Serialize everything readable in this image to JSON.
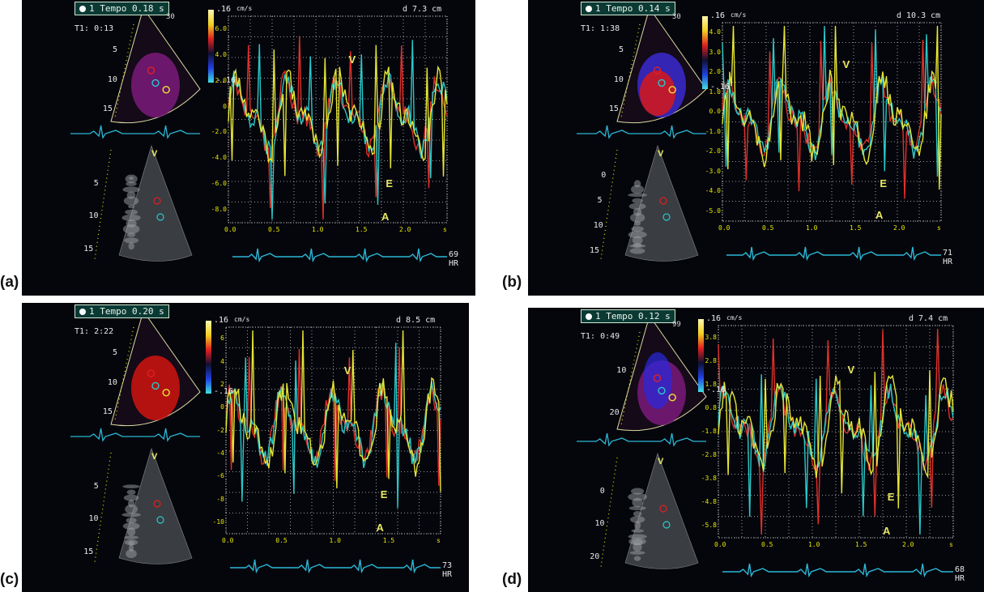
{
  "panels": [
    {
      "id": "a",
      "label": "(a)",
      "info_text": "1 Tempo 0.18 s",
      "time_text": "T1: 0:13",
      "distance": "d 7.3 cm",
      "unit": "cm/s",
      "hr_value": "69",
      "hr_unit": "HR",
      "colorbar_top": ".16",
      "colorbar_bottom": "-.16",
      "y_ticks": [
        "6.0",
        "4.0",
        "2.0",
        "0",
        "-2.0",
        "-4.0",
        "-6.0",
        "-8.0"
      ],
      "x_ticks": [
        "0.0",
        "0.5",
        "1.0",
        "1.5",
        "2.0",
        "s"
      ],
      "sector_depths": [
        "5",
        "10",
        "15"
      ],
      "bmode_depths": [
        "5",
        "10",
        "15"
      ],
      "wave_labels": [
        {
          "text": "V"
        },
        {
          "text": "E"
        },
        {
          "text": "A"
        }
      ],
      "probe_label": "V",
      "small_text": "30"
    },
    {
      "id": "b",
      "label": "(b)",
      "info_text": "1 Tempo 0.14 s",
      "time_text": "T1: 1:38",
      "distance": "d 10.3 cm",
      "unit": "cm/s",
      "hr_value": "71",
      "hr_unit": "HR",
      "colorbar_top": ".16",
      "colorbar_bottom": "-.16",
      "y_ticks": [
        "4.0",
        "3.0",
        "2.0",
        "1.0",
        "0.0",
        "-1.0",
        "-2.0",
        "-3.0",
        "-4.0",
        "-5.0"
      ],
      "x_ticks": [
        "0.0",
        "0.5",
        "1.0",
        "1.5",
        "2.0",
        "s"
      ],
      "sector_depths": [
        "5",
        "10",
        "15"
      ],
      "bmode_depths": [
        "0",
        "5",
        "10",
        "15"
      ],
      "wave_labels": [
        {
          "text": "V"
        },
        {
          "text": "E"
        },
        {
          "text": "A"
        }
      ],
      "probe_label": "V",
      "small_text": "30"
    },
    {
      "id": "c",
      "label": "(c)",
      "info_text": "1 Tempo 0.20 s",
      "time_text": "T1: 2:22",
      "distance": "d 8.5 cm",
      "unit": "cm/s",
      "hr_value": "73",
      "hr_unit": "HR",
      "colorbar_top": ".16",
      "colorbar_bottom": "-.16",
      "y_ticks": [
        "6",
        "4",
        "2",
        "0",
        "-2",
        "-4",
        "-6",
        "-8",
        "-10"
      ],
      "x_ticks": [
        "0.0",
        "0.5",
        "1.0",
        "1.5",
        "s"
      ],
      "sector_depths": [
        "5",
        "10",
        "15"
      ],
      "bmode_depths": [
        "5",
        "10",
        "15"
      ],
      "wave_labels": [
        {
          "text": "V"
        },
        {
          "text": "E"
        },
        {
          "text": "A"
        }
      ],
      "probe_label": "V",
      "small_text": ""
    },
    {
      "id": "d",
      "label": "(d)",
      "info_text": "1 Tempo 0.12 s",
      "time_text": "T1: 0:49",
      "distance": "d 7.4 cm",
      "unit": "cm/s",
      "hr_value": "68",
      "hr_unit": "HR",
      "colorbar_top": ".16",
      "colorbar_bottom": "-.16",
      "y_ticks": [
        "3.8",
        "2.8",
        "1.8",
        "0.8",
        "-1.8",
        "-2.8",
        "-3.8",
        "-4.8",
        "-5.8"
      ],
      "x_ticks": [
        "0.0",
        "0.5",
        "1.0",
        "1.5",
        "2.0",
        "s"
      ],
      "sector_depths": [
        "10",
        "20"
      ],
      "bmode_depths": [
        "0",
        "10",
        "20"
      ],
      "wave_labels": [
        {
          "text": "V"
        },
        {
          "text": "E"
        },
        {
          "text": "A"
        }
      ],
      "probe_label": "V",
      "small_text": "99"
    }
  ],
  "colors": {
    "panel_bg": "#05060c",
    "grid": "#c9c9c9",
    "yellow_trace": "#e6e633",
    "cyan_trace": "#29c9c9",
    "red_trace": "#e0302a",
    "ecg": "#2bb7d6",
    "tick_text": "#e6e600"
  }
}
